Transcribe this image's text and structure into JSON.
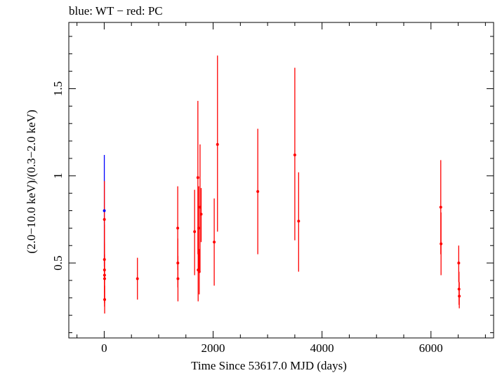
{
  "chart_data": {
    "type": "scatter",
    "title": "blue: WT − red: PC",
    "xlabel": "Time Since 53617.0 MJD (days)",
    "ylabel": "(2.0−10.0 keV)/(0.3−2.0 keV)",
    "xlim": [
      -650,
      7150
    ],
    "ylim": [
      0.07,
      1.88
    ],
    "x_ticks": [
      0,
      2000,
      4000,
      6000
    ],
    "x_tick_labels": [
      "0",
      "2000",
      "4000",
      "6000"
    ],
    "y_ticks": [
      0.5,
      1,
      1.5
    ],
    "y_tick_labels": [
      "0.5",
      "1",
      "1.5"
    ],
    "grid": false,
    "series": [
      {
        "color": "#0000ff",
        "points": [
          {
            "x": 2,
            "y": 0.8,
            "ylo": 0.48,
            "yhi": 1.12
          }
        ]
      },
      {
        "color": "#ff0000",
        "points": [
          {
            "x": 3,
            "y": 0.75,
            "ylo": 0.53,
            "yhi": 0.97
          },
          {
            "x": 4,
            "y": 0.52,
            "ylo": 0.33,
            "yhi": 0.72
          },
          {
            "x": 5,
            "y": 0.46,
            "ylo": 0.3,
            "yhi": 0.62
          },
          {
            "x": 6,
            "y": 0.43,
            "ylo": 0.25,
            "yhi": 0.61
          },
          {
            "x": 7,
            "y": 0.41,
            "ylo": 0.27,
            "yhi": 0.55
          },
          {
            "x": 8,
            "y": 0.29,
            "ylo": 0.21,
            "yhi": 0.37
          },
          {
            "x": 610,
            "y": 0.41,
            "ylo": 0.29,
            "yhi": 0.53
          },
          {
            "x": 1350,
            "y": 0.7,
            "ylo": 0.46,
            "yhi": 0.94
          },
          {
            "x": 1352,
            "y": 0.5,
            "ylo": 0.36,
            "yhi": 0.64
          },
          {
            "x": 1354,
            "y": 0.41,
            "ylo": 0.28,
            "yhi": 0.54
          },
          {
            "x": 1660,
            "y": 0.68,
            "ylo": 0.43,
            "yhi": 0.92
          },
          {
            "x": 1720,
            "y": 0.99,
            "ylo": 0.55,
            "yhi": 1.43
          },
          {
            "x": 1725,
            "y": 0.46,
            "ylo": 0.28,
            "yhi": 0.64
          },
          {
            "x": 1735,
            "y": 0.7,
            "ylo": 0.46,
            "yhi": 0.94
          },
          {
            "x": 1745,
            "y": 0.45,
            "ylo": 0.32,
            "yhi": 0.58
          },
          {
            "x": 1760,
            "y": 0.82,
            "ylo": 0.45,
            "yhi": 1.18
          },
          {
            "x": 1780,
            "y": 0.78,
            "ylo": 0.62,
            "yhi": 0.93
          },
          {
            "x": 2020,
            "y": 0.62,
            "ylo": 0.37,
            "yhi": 0.87
          },
          {
            "x": 2080,
            "y": 1.18,
            "ylo": 0.68,
            "yhi": 1.69
          },
          {
            "x": 2820,
            "y": 0.91,
            "ylo": 0.55,
            "yhi": 1.27
          },
          {
            "x": 3500,
            "y": 1.12,
            "ylo": 0.63,
            "yhi": 1.62
          },
          {
            "x": 3570,
            "y": 0.74,
            "ylo": 0.45,
            "yhi": 1.02
          },
          {
            "x": 6180,
            "y": 0.82,
            "ylo": 0.55,
            "yhi": 1.09
          },
          {
            "x": 6185,
            "y": 0.61,
            "ylo": 0.43,
            "yhi": 0.79
          },
          {
            "x": 6510,
            "y": 0.5,
            "ylo": 0.39,
            "yhi": 0.6
          },
          {
            "x": 6515,
            "y": 0.35,
            "ylo": 0.26,
            "yhi": 0.45
          },
          {
            "x": 6520,
            "y": 0.31,
            "ylo": 0.24,
            "yhi": 0.39
          }
        ]
      }
    ]
  }
}
